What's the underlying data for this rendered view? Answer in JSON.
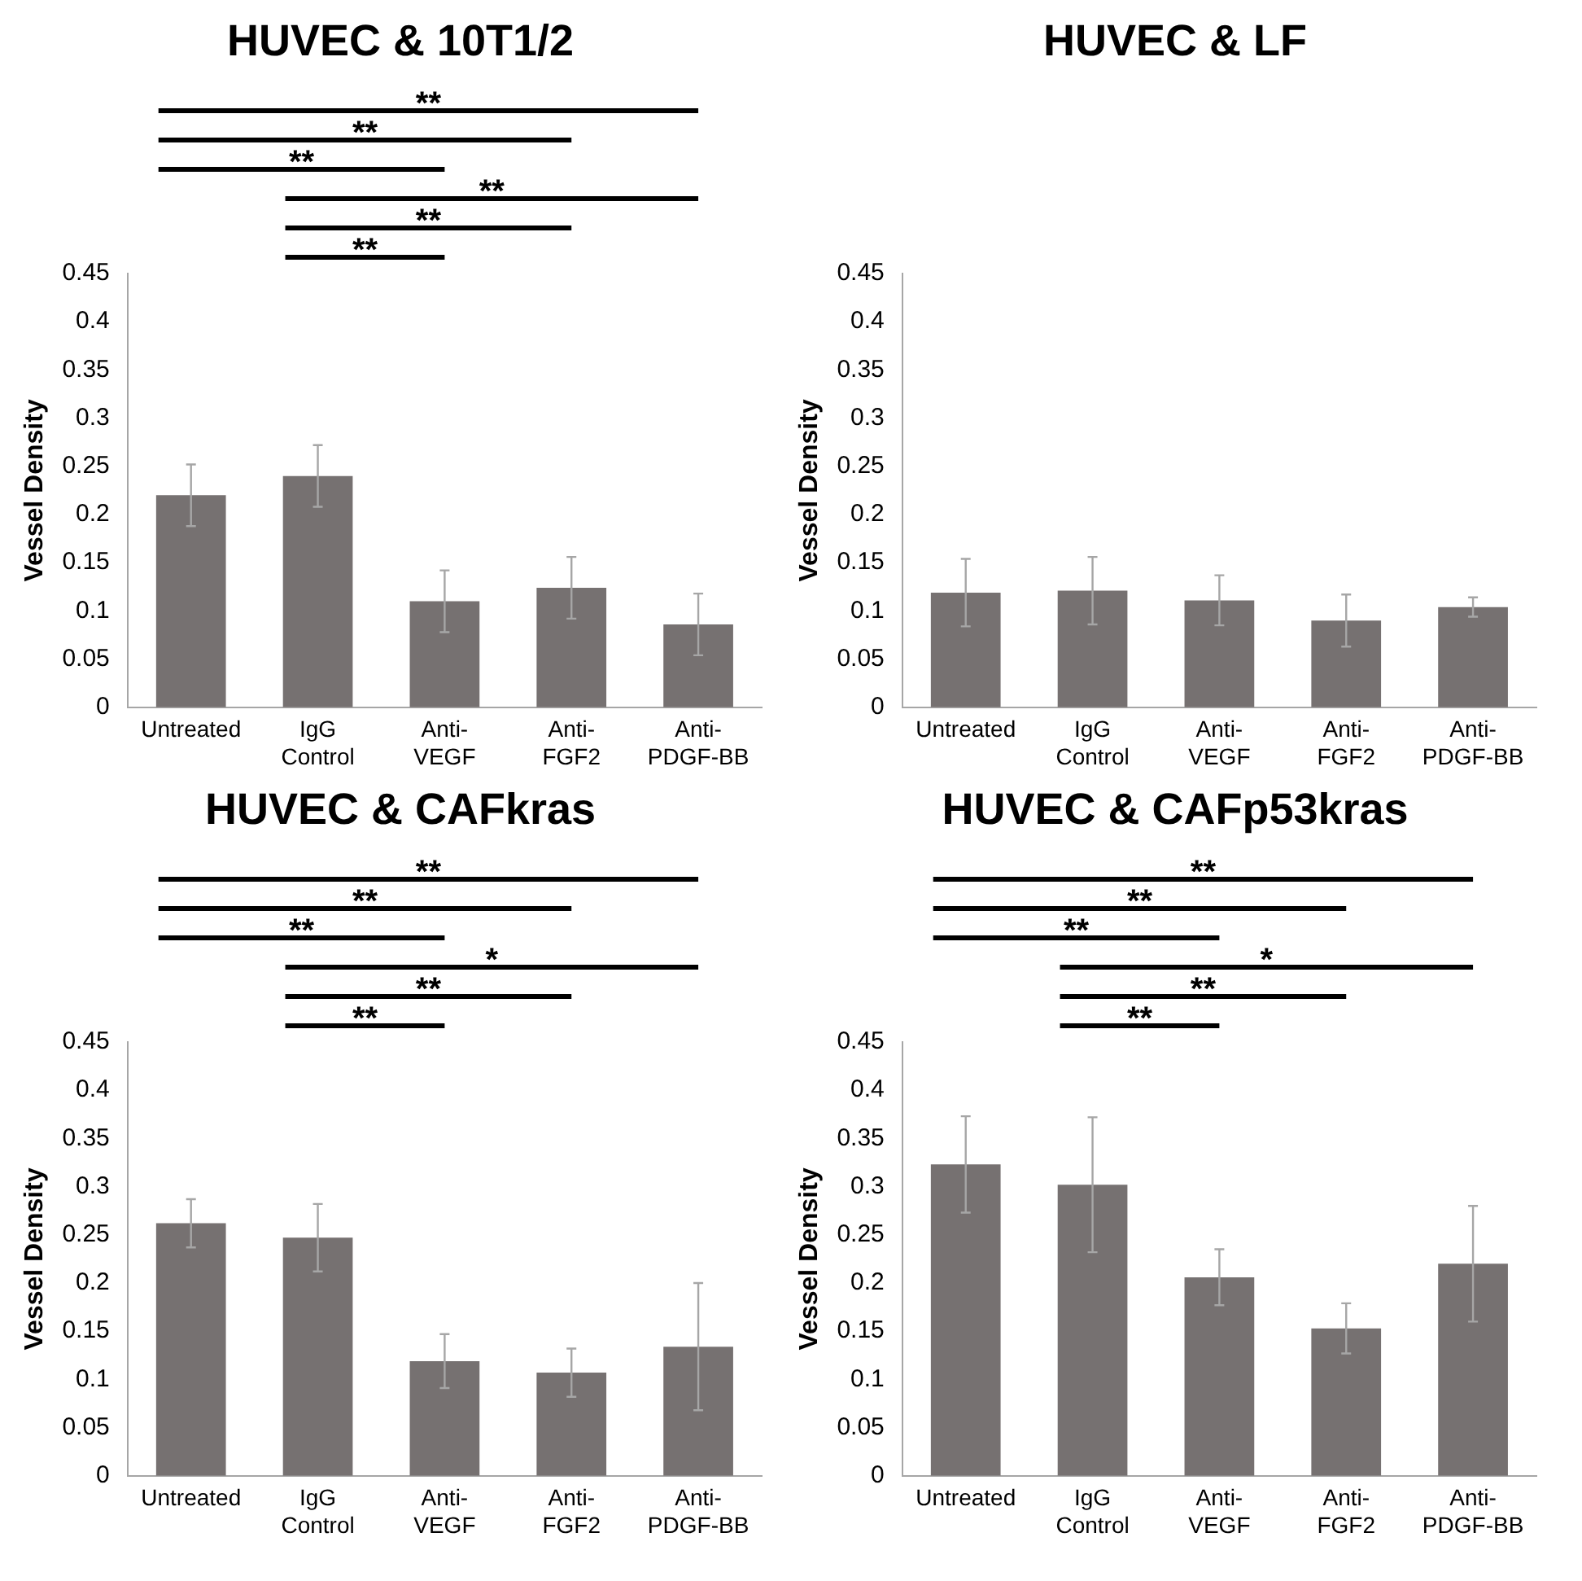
{
  "chart_data": [
    {
      "type": "bar",
      "title": "HUVEC & 10T1/2",
      "ylabel": "Vessel Density",
      "categories": [
        "Untreated",
        "IgG Control",
        "Anti-VEGF",
        "Anti-FGF2",
        "Anti-PDGF-BB"
      ],
      "color": "#767171",
      "values": [
        0.22,
        0.24,
        0.11,
        0.124,
        0.086
      ],
      "errors": [
        0.032,
        0.032,
        0.032,
        0.032,
        0.032
      ],
      "ylim": [
        0,
        0.45
      ],
      "yticks": [
        0,
        0.05,
        0.1,
        0.15,
        0.2,
        0.25,
        0.3,
        0.35,
        0.4,
        0.45
      ],
      "grid": false,
      "legend": false,
      "annotations": [
        "**",
        "**",
        "**",
        "**",
        "**",
        "**"
      ]
    },
    {
      "type": "bar",
      "title": "HUVEC & LF",
      "ylabel": "Vessel Density",
      "categories": [
        "Untreated",
        "IgG Control",
        "Anti-VEGF",
        "Anti-FGF2",
        "Anti-PDGF-BB"
      ],
      "color": "#767171",
      "values": [
        0.119,
        0.121,
        0.111,
        0.09,
        0.104
      ],
      "errors": [
        0.035,
        0.035,
        0.026,
        0.027,
        0.01
      ],
      "ylim": [
        0,
        0.45
      ],
      "yticks": [
        0,
        0.05,
        0.1,
        0.15,
        0.2,
        0.25,
        0.3,
        0.35,
        0.4,
        0.45
      ],
      "grid": false,
      "legend": false
    },
    {
      "type": "bar",
      "title": "HUVEC & CAFkras",
      "ylabel": "Vessel Density",
      "categories": [
        "Untreated",
        "IgG Control",
        "Anti-VEGF",
        "Anti-FGF2",
        "Anti-PDGF-BB"
      ],
      "color": "#767171",
      "values": [
        0.262,
        0.247,
        0.119,
        0.107,
        0.134
      ],
      "errors": [
        0.025,
        0.035,
        0.028,
        0.025,
        0.066
      ],
      "ylim": [
        0,
        0.45
      ],
      "yticks": [
        0,
        0.05,
        0.1,
        0.15,
        0.2,
        0.25,
        0.3,
        0.35,
        0.4,
        0.45
      ],
      "grid": false,
      "legend": false,
      "annotations": [
        "**",
        "**",
        "**",
        "*",
        "**",
        "**"
      ]
    },
    {
      "type": "bar",
      "title": "HUVEC & CAFp53kras",
      "ylabel": "Vessel Density",
      "categories": [
        "Untreated",
        "IgG Control",
        "Anti-VEGF",
        "Anti-FGF2",
        "Anti-PDGF-BB"
      ],
      "color": "#767171",
      "values": [
        0.323,
        0.302,
        0.206,
        0.153,
        0.22
      ],
      "errors": [
        0.05,
        0.07,
        0.029,
        0.026,
        0.06
      ],
      "ylim": [
        0,
        0.45
      ],
      "yticks": [
        0,
        0.05,
        0.1,
        0.15,
        0.2,
        0.25,
        0.3,
        0.35,
        0.4,
        0.45
      ],
      "grid": false,
      "legend": false,
      "annotations": [
        "**",
        "**",
        "**",
        "*",
        "**",
        "**"
      ]
    }
  ]
}
